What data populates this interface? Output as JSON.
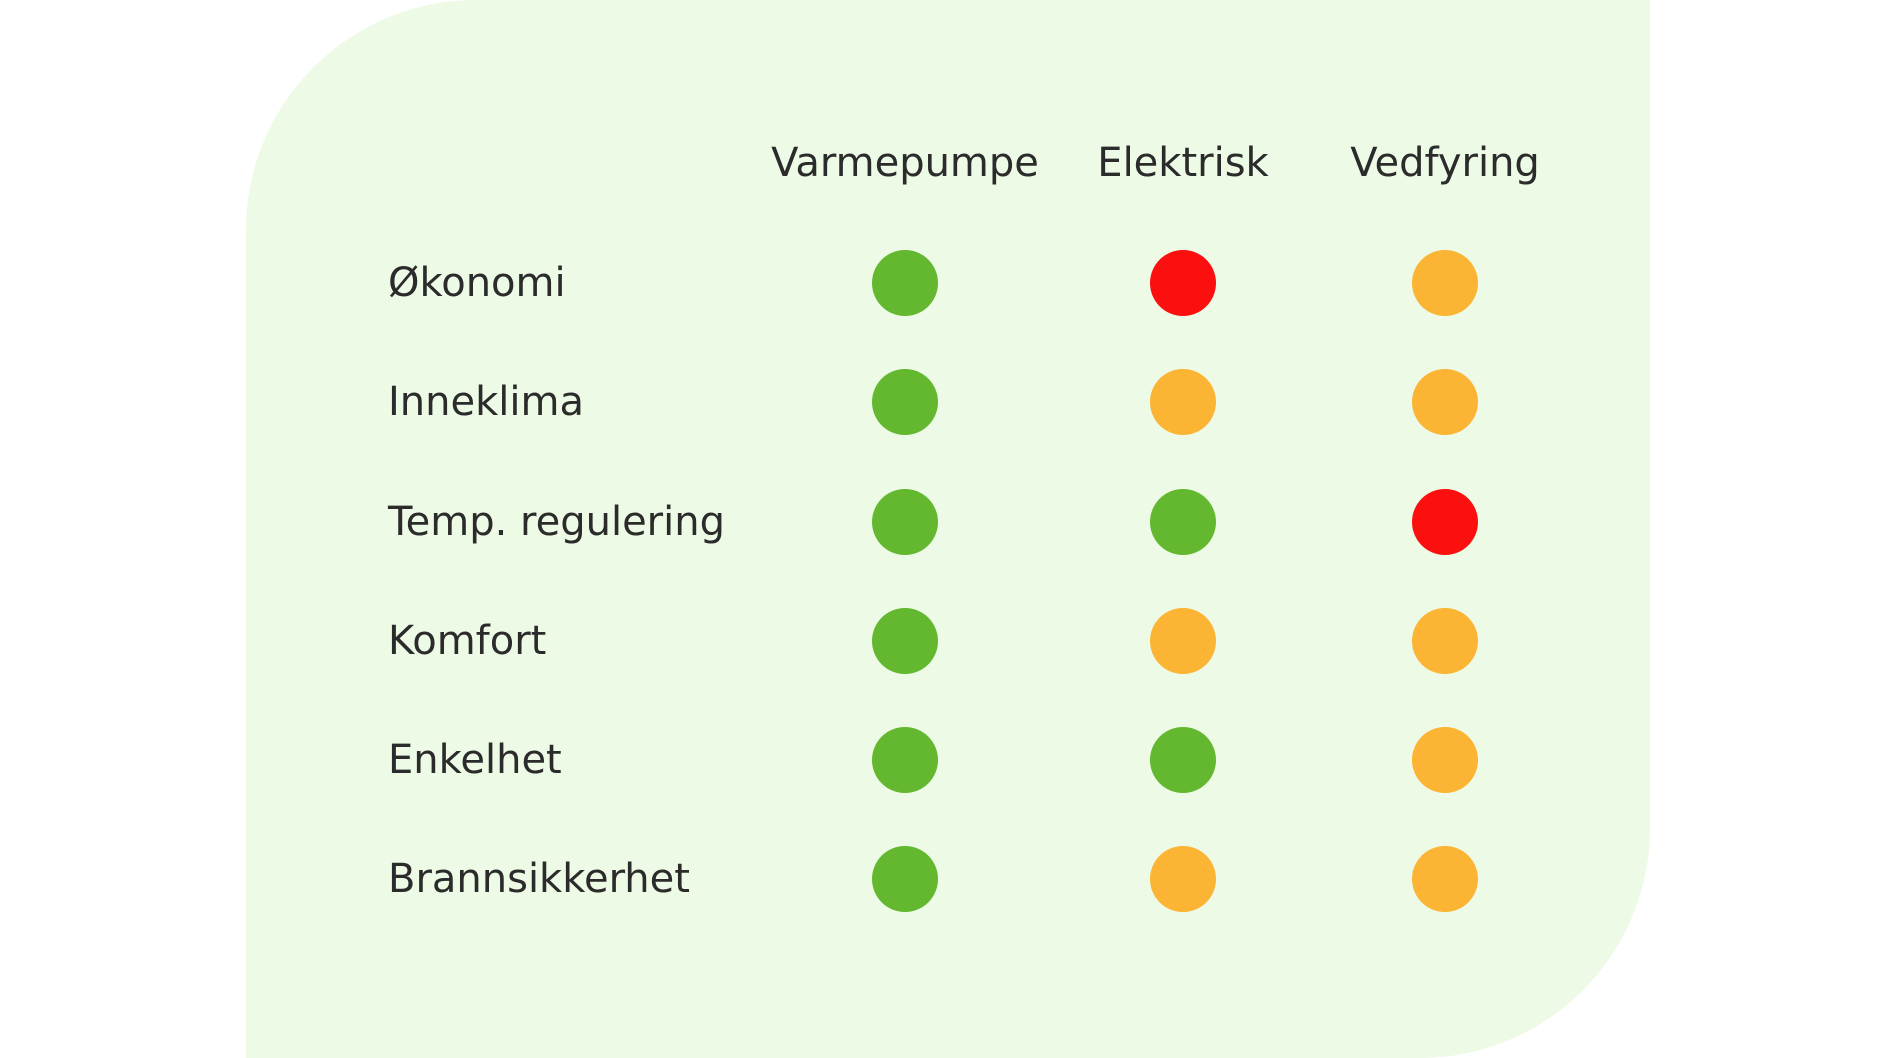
{
  "columns": [
    {
      "key": "varmepumpe",
      "label": "Varmepumpe"
    },
    {
      "key": "elektrisk",
      "label": "Elektrisk"
    },
    {
      "key": "vedfyring",
      "label": "Vedfyring"
    }
  ],
  "rows": [
    {
      "key": "okonomi",
      "label": "Økonomi",
      "ratings": [
        "green",
        "red",
        "orange"
      ]
    },
    {
      "key": "inneklima",
      "label": "Inneklima",
      "ratings": [
        "green",
        "orange",
        "orange"
      ]
    },
    {
      "key": "temp-regulering",
      "label": "Temp. regulering",
      "ratings": [
        "green",
        "green",
        "red"
      ]
    },
    {
      "key": "komfort",
      "label": "Komfort",
      "ratings": [
        "green",
        "orange",
        "orange"
      ]
    },
    {
      "key": "enkelhet",
      "label": "Enkelhet",
      "ratings": [
        "green",
        "green",
        "orange"
      ]
    },
    {
      "key": "brannsikkerhet",
      "label": "Brannsikkerhet",
      "ratings": [
        "green",
        "orange",
        "orange"
      ]
    }
  ],
  "colors": {
    "green": "#63b830",
    "orange": "#fbb434",
    "red": "#fb0f0f",
    "card_background": "#edfae5",
    "text": "#2b2b2b"
  }
}
